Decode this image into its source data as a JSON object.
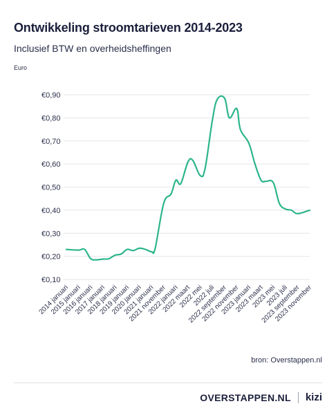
{
  "header": {
    "title": "Ontwikkeling stroomtarieven 2014-2023",
    "subtitle": "Inclusief BTW en overheidsheffingen",
    "unit": "Euro"
  },
  "footer": {
    "source": "bron: Overstappen.nl",
    "brand": "OVERSTAPPEN.NL",
    "brand_second": "kizi"
  },
  "colors": {
    "line": "#2bb58b",
    "grid": "#e6e6e6",
    "text": "#1b1f3b"
  },
  "chart_data": {
    "type": "line",
    "title": "Ontwikkeling stroomtarieven 2014-2023",
    "subtitle": "Inclusief BTW en overheidsheffingen",
    "ylabel": "Euro",
    "xlabel": "",
    "ylim": [
      0.1,
      0.9
    ],
    "yticks": [
      0.1,
      0.2,
      0.3,
      0.4,
      0.5,
      0.6,
      0.7,
      0.8,
      0.9
    ],
    "ytick_labels": [
      "€0,10",
      "€0,20",
      "€0,30",
      "€0,40",
      "€0,50",
      "€0,60",
      "€0,70",
      "€0,80",
      "€0,90"
    ],
    "grid": true,
    "categories": [
      "2014 januari",
      "2015 januari",
      "2016 januari",
      "2017 januari",
      "2018 januari",
      "2019 januari",
      "2020 januari",
      "2021 januari",
      "2021 november",
      "2022 januari",
      "2022 maart",
      "2022 mei",
      "2022 juli",
      "2022 september",
      "2022 november",
      "2023 januari",
      "2023 maart",
      "2023 mei",
      "2023 juli",
      "2023 september",
      "2023 november"
    ],
    "series": [
      {
        "name": "",
        "x": [
          0,
          1,
          1.5,
          2,
          2.5,
          3,
          3.5,
          4,
          4.5,
          5,
          5.5,
          6,
          6.5,
          7,
          7.3,
          8,
          8.6,
          9,
          9.4,
          10,
          10.4,
          11,
          11.4,
          12,
          12.4,
          13,
          13.4,
          14,
          14.3,
          15,
          15.5,
          16,
          16.4,
          17,
          17.5,
          18,
          18.5,
          19,
          20
        ],
        "values": [
          0.23,
          0.227,
          0.23,
          0.19,
          0.185,
          0.188,
          0.19,
          0.205,
          0.21,
          0.23,
          0.225,
          0.235,
          0.23,
          0.22,
          0.235,
          0.43,
          0.47,
          0.53,
          0.515,
          0.61,
          0.615,
          0.55,
          0.58,
          0.79,
          0.88,
          0.885,
          0.8,
          0.84,
          0.75,
          0.69,
          0.6,
          0.53,
          0.525,
          0.52,
          0.43,
          0.405,
          0.4,
          0.385,
          0.4
        ]
      }
    ]
  }
}
